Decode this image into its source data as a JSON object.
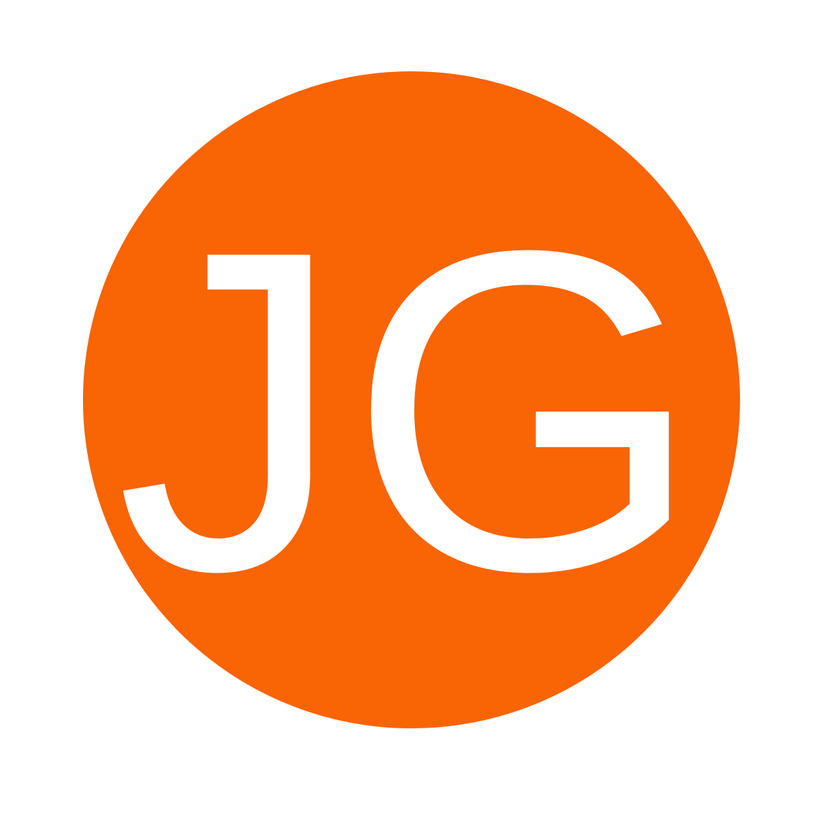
{
  "avatar": {
    "initials": "JG",
    "background_color": "#f96404",
    "text_color": "#ffffff"
  }
}
